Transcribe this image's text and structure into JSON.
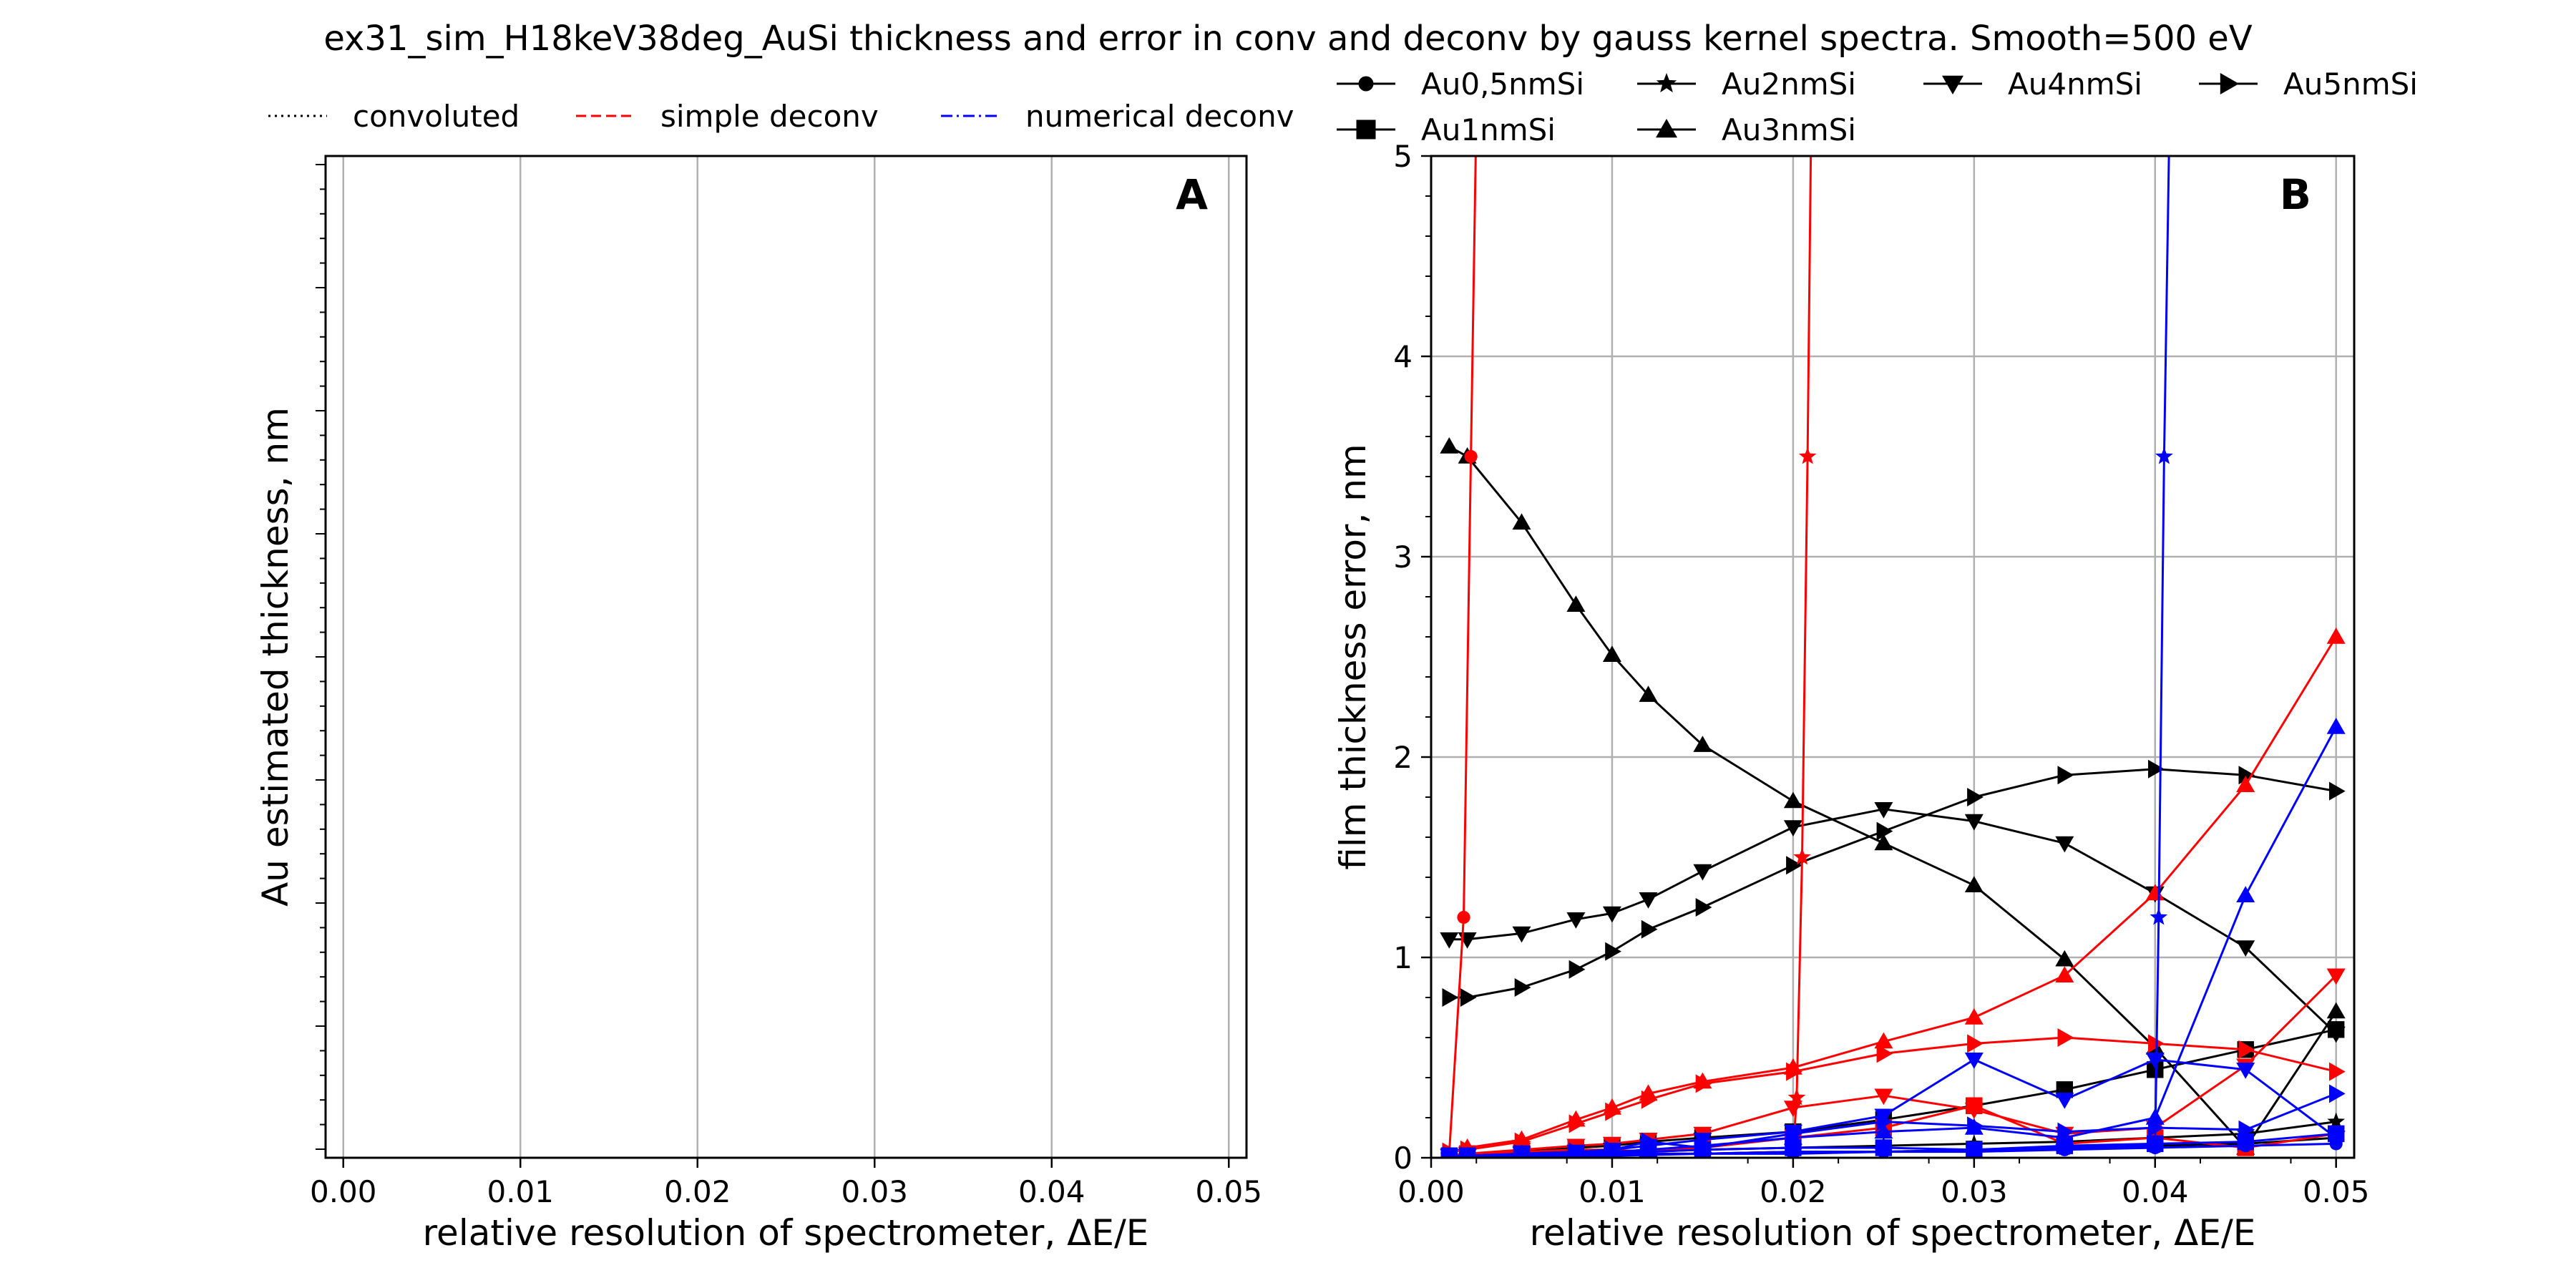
{
  "title": "ex31_sim_H18keV38deg_AuSi thickness and error in conv and deconv by gauss kernel spectra. Smooth=500 eV",
  "style_legend": [
    {
      "label": "convoluted",
      "color": "#000000",
      "dash": "dotted"
    },
    {
      "label": "simple deconv",
      "color": "#ff0000",
      "dash": "dashed"
    },
    {
      "label": "numerical deconv",
      "color": "#0000ff",
      "dash": "dashdot"
    }
  ],
  "marker_legend": [
    {
      "label": "Au0,5nmSi",
      "marker": "circle"
    },
    {
      "label": "Au2nmSi",
      "marker": "star"
    },
    {
      "label": "Au4nmSi",
      "marker": "triangle-down"
    },
    {
      "label": "Au5nmSi",
      "marker": "triangle-right"
    },
    {
      "label": "Au1nmSi",
      "marker": "square"
    },
    {
      "label": "Au3nmSi",
      "marker": "triangle-up"
    }
  ],
  "chart_data": [
    {
      "type": "line",
      "panel_label": "A",
      "xlabel": "relative resolution of spectrometer, ΔE/E",
      "ylabel": "Au estimated thickness, nm",
      "xlim": [
        -0.001,
        0.051
      ],
      "xticks": [
        "0.00",
        "0.01",
        "0.02",
        "0.03",
        "0.04",
        "0.05"
      ],
      "grid": "vertical",
      "series": []
    },
    {
      "type": "line",
      "panel_label": "B",
      "xlabel": "relative resolution of spectrometer, ΔE/E",
      "ylabel": "film thickness error, nm",
      "xlim": [
        0,
        0.051
      ],
      "ylim": [
        0,
        5
      ],
      "xticks": [
        "0.00",
        "0.01",
        "0.02",
        "0.03",
        "0.04",
        "0.05"
      ],
      "yticks": [
        "0",
        "1",
        "2",
        "3",
        "4",
        "5"
      ],
      "grid": "both",
      "series": [
        {
          "name": "Au3nmSi",
          "method": "convoluted",
          "marker": "triangle-up",
          "color": "#000000",
          "x": [
            0.001,
            0.002,
            0.005,
            0.008,
            0.01,
            0.012,
            0.015,
            0.02,
            0.025,
            0.03,
            0.035,
            0.04,
            0.045,
            0.05
          ],
          "y": [
            3.55,
            3.5,
            3.17,
            2.76,
            2.51,
            2.31,
            2.06,
            1.78,
            1.57,
            1.36,
            0.99,
            0.55,
            0.05,
            0.73
          ]
        },
        {
          "name": "Au4nmSi",
          "method": "convoluted",
          "marker": "triangle-down",
          "color": "#000000",
          "x": [
            0.001,
            0.002,
            0.005,
            0.008,
            0.01,
            0.012,
            0.015,
            0.02,
            0.025,
            0.03,
            0.035,
            0.04,
            0.045,
            0.05
          ],
          "y": [
            1.09,
            1.09,
            1.12,
            1.19,
            1.22,
            1.29,
            1.43,
            1.65,
            1.74,
            1.68,
            1.57,
            1.32,
            1.05,
            0.62
          ]
        },
        {
          "name": "Au5nmSi",
          "method": "convoluted",
          "marker": "triangle-right",
          "color": "#000000",
          "x": [
            0.001,
            0.002,
            0.005,
            0.008,
            0.01,
            0.012,
            0.015,
            0.02,
            0.025,
            0.03,
            0.035,
            0.04,
            0.045,
            0.05
          ],
          "y": [
            0.8,
            0.8,
            0.85,
            0.94,
            1.03,
            1.14,
            1.25,
            1.46,
            1.63,
            1.8,
            1.91,
            1.94,
            1.91,
            1.83
          ]
        },
        {
          "name": "Au1nmSi",
          "method": "convoluted",
          "marker": "square",
          "color": "#000000",
          "x": [
            0.001,
            0.002,
            0.005,
            0.008,
            0.01,
            0.012,
            0.015,
            0.02,
            0.025,
            0.03,
            0.035,
            0.04,
            0.045,
            0.05
          ],
          "y": [
            0.01,
            0.02,
            0.03,
            0.05,
            0.06,
            0.08,
            0.1,
            0.13,
            0.19,
            0.26,
            0.34,
            0.44,
            0.54,
            0.64
          ]
        },
        {
          "name": "Au2nmSi",
          "method": "convoluted",
          "marker": "star",
          "color": "#000000",
          "x": [
            0.001,
            0.002,
            0.005,
            0.008,
            0.01,
            0.012,
            0.015,
            0.02,
            0.025,
            0.03,
            0.035,
            0.04,
            0.045,
            0.05
          ],
          "y": [
            0.01,
            0.01,
            0.02,
            0.02,
            0.03,
            0.03,
            0.04,
            0.05,
            0.06,
            0.07,
            0.08,
            0.1,
            0.12,
            0.18
          ]
        },
        {
          "name": "Au0,5nmSi",
          "method": "convoluted",
          "marker": "circle",
          "color": "#000000",
          "x": [
            0.001,
            0.002,
            0.005,
            0.008,
            0.01,
            0.012,
            0.015,
            0.02,
            0.025,
            0.03,
            0.035,
            0.04,
            0.045,
            0.05
          ],
          "y": [
            0.01,
            0.01,
            0.01,
            0.01,
            0.02,
            0.02,
            0.02,
            0.03,
            0.03,
            0.04,
            0.05,
            0.06,
            0.07,
            0.1
          ]
        },
        {
          "name": "Au3nmSi",
          "method": "simple deconv",
          "marker": "triangle-up",
          "color": "#ff0000",
          "x": [
            0.001,
            0.002,
            0.005,
            0.008,
            0.01,
            0.012,
            0.015,
            0.02,
            0.025,
            0.03,
            0.035,
            0.04,
            0.045,
            0.05
          ],
          "y": [
            0.02,
            0.05,
            0.09,
            0.19,
            0.25,
            0.32,
            0.38,
            0.45,
            0.58,
            0.7,
            0.91,
            1.32,
            1.86,
            2.6
          ]
        },
        {
          "name": "Au5nmSi",
          "method": "simple deconv",
          "marker": "triangle-right",
          "color": "#ff0000",
          "x": [
            0.001,
            0.002,
            0.005,
            0.008,
            0.01,
            0.012,
            0.015,
            0.02,
            0.025,
            0.03,
            0.035,
            0.04,
            0.045,
            0.05
          ],
          "y": [
            0.03,
            0.04,
            0.08,
            0.17,
            0.23,
            0.29,
            0.37,
            0.43,
            0.52,
            0.57,
            0.6,
            0.57,
            0.54,
            0.43
          ]
        },
        {
          "name": "Au4nmSi",
          "method": "simple deconv",
          "marker": "triangle-down",
          "color": "#ff0000",
          "x": [
            0.001,
            0.002,
            0.005,
            0.008,
            0.01,
            0.012,
            0.015,
            0.02,
            0.025,
            0.03,
            0.035,
            0.04,
            0.045,
            0.05
          ],
          "y": [
            0.01,
            0.02,
            0.04,
            0.06,
            0.07,
            0.09,
            0.12,
            0.25,
            0.31,
            0.24,
            0.12,
            0.15,
            0.46,
            0.91
          ]
        },
        {
          "name": "Au0,5nmSi",
          "method": "simple deconv",
          "marker": "circle",
          "color": "#ff0000",
          "x": [
            0.001,
            0.0018,
            0.0022,
            0.0025
          ],
          "y": [
            0.02,
            1.2,
            3.5,
            5.2
          ]
        },
        {
          "name": "Au1nmSi",
          "method": "simple deconv",
          "marker": "square",
          "color": "#ff0000",
          "x": [
            0.001,
            0.002,
            0.005,
            0.008,
            0.01,
            0.012,
            0.015,
            0.02,
            0.025,
            0.03,
            0.035,
            0.04,
            0.045,
            0.05
          ],
          "y": [
            0.01,
            0.02,
            0.03,
            0.04,
            0.04,
            0.03,
            0.05,
            0.1,
            0.15,
            0.26,
            0.07,
            0.1,
            0.05,
            0.12
          ]
        },
        {
          "name": "Au2nmSi",
          "method": "simple deconv",
          "marker": "star",
          "color": "#ff0000",
          "x": [
            0.001,
            0.005,
            0.01,
            0.015,
            0.02,
            0.0202,
            0.0205,
            0.0208,
            0.021
          ],
          "y": [
            0.01,
            0.01,
            0.02,
            0.02,
            0.03,
            0.3,
            1.5,
            3.5,
            5.2
          ]
        },
        {
          "name": "Au2nmSi",
          "method": "numerical deconv",
          "marker": "star",
          "color": "#0000ff",
          "x": [
            0.001,
            0.005,
            0.01,
            0.015,
            0.02,
            0.025,
            0.03,
            0.035,
            0.04,
            0.0402,
            0.0405,
            0.0408
          ],
          "y": [
            0.01,
            0.01,
            0.02,
            0.02,
            0.03,
            0.03,
            0.04,
            0.05,
            0.06,
            1.2,
            3.5,
            5.2
          ]
        },
        {
          "name": "Au3nmSi",
          "method": "numerical deconv",
          "marker": "triangle-up",
          "color": "#0000ff",
          "x": [
            0.001,
            0.002,
            0.005,
            0.008,
            0.01,
            0.012,
            0.015,
            0.02,
            0.025,
            0.03,
            0.035,
            0.04,
            0.045,
            0.05
          ],
          "y": [
            0.01,
            0.01,
            0.02,
            0.02,
            0.03,
            0.04,
            0.06,
            0.1,
            0.13,
            0.15,
            0.1,
            0.2,
            1.31,
            2.15
          ]
        },
        {
          "name": "Au4nmSi",
          "method": "numerical deconv",
          "marker": "triangle-down",
          "color": "#0000ff",
          "x": [
            0.001,
            0.002,
            0.005,
            0.008,
            0.01,
            0.012,
            0.015,
            0.02,
            0.025,
            0.03,
            0.035,
            0.04,
            0.045,
            0.05
          ],
          "y": [
            0.01,
            0.01,
            0.02,
            0.03,
            0.04,
            0.06,
            0.09,
            0.13,
            0.21,
            0.49,
            0.29,
            0.49,
            0.44,
            0.1
          ]
        },
        {
          "name": "Au5nmSi",
          "method": "numerical deconv",
          "marker": "triangle-right",
          "color": "#0000ff",
          "x": [
            0.001,
            0.002,
            0.005,
            0.008,
            0.01,
            0.012,
            0.015,
            0.02,
            0.025,
            0.03,
            0.035,
            0.04,
            0.045,
            0.05
          ],
          "y": [
            0.01,
            0.01,
            0.02,
            0.03,
            0.04,
            0.08,
            0.05,
            0.12,
            0.18,
            0.16,
            0.13,
            0.15,
            0.14,
            0.32
          ]
        },
        {
          "name": "Au1nmSi",
          "method": "numerical deconv",
          "marker": "square",
          "color": "#0000ff",
          "x": [
            0.001,
            0.002,
            0.005,
            0.008,
            0.01,
            0.012,
            0.015,
            0.02,
            0.025,
            0.03,
            0.035,
            0.04,
            0.045,
            0.05
          ],
          "y": [
            0.01,
            0.01,
            0.02,
            0.02,
            0.03,
            0.03,
            0.04,
            0.05,
            0.05,
            0.04,
            0.06,
            0.07,
            0.08,
            0.12
          ]
        },
        {
          "name": "Au0,5nmSi",
          "method": "numerical deconv",
          "marker": "circle",
          "color": "#0000ff",
          "x": [
            0.001,
            0.005,
            0.01,
            0.015,
            0.02,
            0.025,
            0.03,
            0.035,
            0.04,
            0.045,
            0.05
          ],
          "y": [
            0.01,
            0.01,
            0.01,
            0.02,
            0.02,
            0.03,
            0.03,
            0.04,
            0.05,
            0.06,
            0.07
          ]
        }
      ]
    }
  ]
}
